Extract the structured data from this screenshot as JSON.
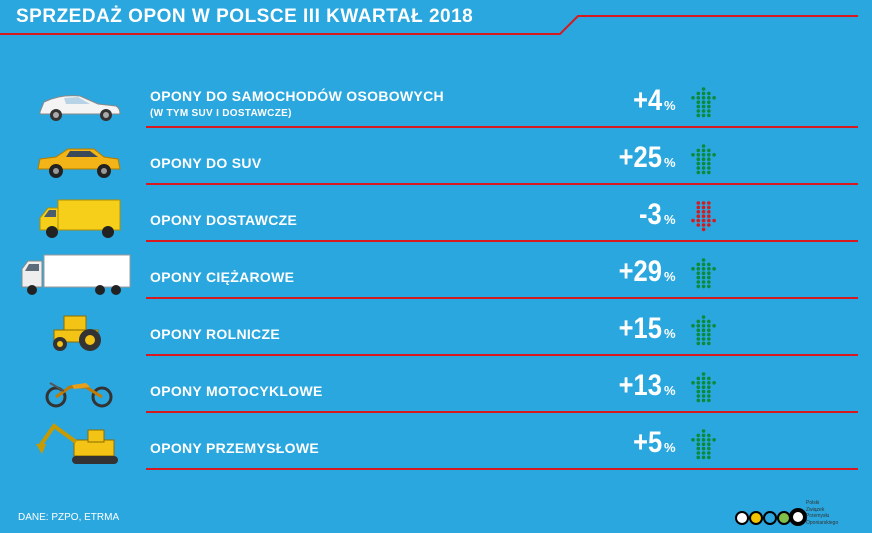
{
  "title": "SPRZEDAŻ OPON W POLSCE III KWARTAŁ 2018",
  "unit": "%",
  "rows": [
    {
      "label": "OPONY DO SAMOCHODÓW OSOBOWYCH",
      "sublabel": "(W TYM SUV I DOSTAWCZE)",
      "value": "+4",
      "trend": "up",
      "icon": "passenger-car-icon"
    },
    {
      "label": "OPONY DO SUV",
      "sublabel": "",
      "value": "+25",
      "trend": "up",
      "icon": "suv-icon"
    },
    {
      "label": "OPONY DOSTAWCZE",
      "sublabel": "",
      "value": "-3",
      "trend": "down",
      "icon": "delivery-van-icon"
    },
    {
      "label": "OPONY CIĘŻAROWE",
      "sublabel": "",
      "value": "+29",
      "trend": "up",
      "icon": "truck-icon"
    },
    {
      "label": "OPONY ROLNICZE",
      "sublabel": "",
      "value": "+15",
      "trend": "up",
      "icon": "tractor-icon"
    },
    {
      "label": "OPONY MOTOCYKLOWE",
      "sublabel": "",
      "value": "+13",
      "trend": "up",
      "icon": "motorcycle-icon"
    },
    {
      "label": "OPONY PRZEMYSŁOWE",
      "sublabel": "",
      "value": "+5",
      "trend": "up",
      "icon": "excavator-icon"
    }
  ],
  "source": "DANE: PZPO, ETRMA",
  "logo": {
    "name": "pzpo-logo",
    "lines": [
      "Polski",
      "Związek",
      "Przemysłu",
      "Oponiarskiego"
    ]
  },
  "colors": {
    "background": "#2aa7de",
    "accent": "#d71920",
    "up": "#0b8a3a",
    "down": "#d71920"
  }
}
